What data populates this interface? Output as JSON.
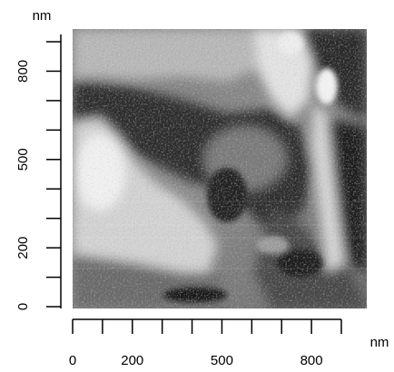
{
  "image": {
    "kind": "AFM phase/height micrograph",
    "colormap": "grayscale",
    "background": "#ffffff",
    "axis_color": "#000000"
  },
  "axes": {
    "x": {
      "unit": "nm",
      "ticks": [
        0,
        100,
        200,
        300,
        400,
        500,
        600,
        700,
        800,
        900
      ],
      "labels": [
        {
          "value": 0,
          "text": "0"
        },
        {
          "value": 200,
          "text": "200"
        },
        {
          "value": 500,
          "text": "500"
        },
        {
          "value": 800,
          "text": "800"
        }
      ]
    },
    "y": {
      "unit": "nm",
      "ticks": [
        0,
        100,
        200,
        300,
        400,
        500,
        600,
        700,
        800,
        900
      ],
      "labels": [
        {
          "value": 0,
          "text": "0"
        },
        {
          "value": 200,
          "text": "200"
        },
        {
          "value": 500,
          "text": "500"
        },
        {
          "value": 800,
          "text": "800"
        }
      ]
    }
  }
}
